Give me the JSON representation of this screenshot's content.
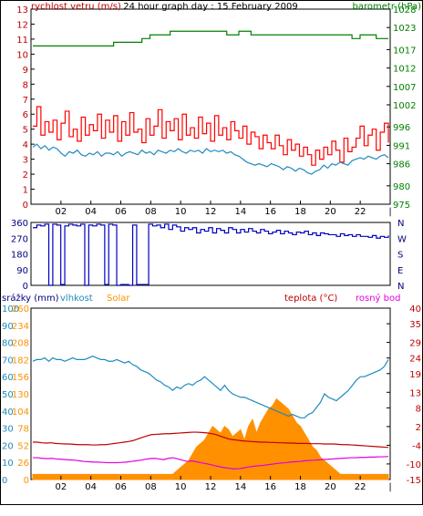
{
  "chart_data": [
    {
      "type": "line",
      "title": "24 hour graph day : 15 February 2009",
      "x_ticks": [
        "02",
        "04",
        "06",
        "08",
        "10",
        "12",
        "14",
        "16",
        "18",
        "20",
        "22"
      ],
      "left_axis": {
        "label": "rychlost vetru (m/s)",
        "color": "#c00000",
        "ylim": [
          0,
          13
        ],
        "ticks": [
          "0",
          "1",
          "2",
          "3",
          "4",
          "5",
          "6",
          "7",
          "8",
          "9",
          "10",
          "11",
          "12",
          "13"
        ]
      },
      "right_axis": {
        "label": "barometr (hPa)",
        "color": "#008000",
        "ylim": [
          975,
          1028
        ],
        "ticks": [
          "975",
          "980",
          "986",
          "991",
          "996",
          "1002",
          "1007",
          "1012",
          "1017",
          "1023",
          "1028"
        ]
      },
      "series": [
        {
          "name": "rychlost vetru",
          "axis": "left",
          "color": "#ff0000",
          "values": [
            5.2,
            6.5,
            4.6,
            5.5,
            4.8,
            5.6,
            4.3,
            5.4,
            6.2,
            4.5,
            5.0,
            4.2,
            5.8,
            4.6,
            5.3,
            4.9,
            6.0,
            4.4,
            5.6,
            4.8,
            5.9,
            4.2,
            5.5,
            4.6,
            6.1,
            4.8,
            5.0,
            4.1,
            5.7,
            4.6,
            5.2,
            6.3,
            4.4,
            5.5,
            4.9,
            5.7,
            4.3,
            6.0,
            4.6,
            5.1,
            4.4,
            5.8,
            4.7,
            5.4,
            4.2,
            5.9,
            4.6,
            5.1,
            4.3,
            5.5,
            4.9,
            4.4,
            5.2,
            4.0,
            4.8,
            4.5,
            3.7,
            4.6,
            4.1,
            3.7,
            4.6,
            3.9,
            3.3,
            4.3,
            3.6,
            4.0,
            3.2,
            3.8,
            3.3,
            2.6,
            3.6,
            3.0,
            3.8,
            3.3,
            4.2,
            3.6,
            2.8,
            4.4,
            3.5,
            3.8,
            4.4,
            5.2,
            3.9,
            4.6,
            5.0,
            3.6,
            4.8,
            5.4,
            4.1
          ]
        },
        {
          "name": "rychlost vetru prumer",
          "axis": "left",
          "color": "#1f8ac0",
          "values": [
            3.8,
            4.0,
            3.7,
            3.9,
            3.6,
            3.8,
            3.7,
            3.4,
            3.2,
            3.5,
            3.4,
            3.6,
            3.3,
            3.2,
            3.4,
            3.3,
            3.5,
            3.2,
            3.4,
            3.4,
            3.3,
            3.5,
            3.2,
            3.4,
            3.5,
            3.4,
            3.3,
            3.6,
            3.4,
            3.5,
            3.3,
            3.6,
            3.5,
            3.4,
            3.6,
            3.5,
            3.7,
            3.5,
            3.4,
            3.6,
            3.5,
            3.6,
            3.4,
            3.7,
            3.5,
            3.6,
            3.5,
            3.6,
            3.4,
            3.5,
            3.3,
            3.2,
            3.0,
            2.8,
            2.7,
            2.6,
            2.7,
            2.6,
            2.5,
            2.7,
            2.6,
            2.5,
            2.3,
            2.5,
            2.4,
            2.2,
            2.4,
            2.3,
            2.1,
            2.0,
            2.2,
            2.3,
            2.6,
            2.4,
            2.7,
            2.6,
            2.8,
            2.7,
            2.6,
            2.9,
            3.0,
            3.1,
            3.0,
            3.2,
            3.1,
            3.0,
            3.2,
            3.3,
            3.1
          ]
        },
        {
          "name": "barometr",
          "axis": "right",
          "color": "#008000",
          "values": [
            1018,
            1018,
            1018,
            1018,
            1018,
            1018,
            1018,
            1018,
            1018,
            1018,
            1018,
            1018,
            1018,
            1018,
            1018,
            1018,
            1018,
            1018,
            1018,
            1018,
            1019,
            1019,
            1019,
            1019,
            1019,
            1019,
            1019,
            1020,
            1020,
            1021,
            1021,
            1021,
            1021,
            1021,
            1022,
            1022,
            1022,
            1022,
            1022,
            1022,
            1022,
            1022,
            1022,
            1022,
            1022,
            1022,
            1022,
            1022,
            1021,
            1021,
            1021,
            1022,
            1022,
            1022,
            1021,
            1021,
            1021,
            1021,
            1021,
            1021,
            1021,
            1021,
            1021,
            1021,
            1021,
            1021,
            1021,
            1021,
            1021,
            1021,
            1021,
            1021,
            1021,
            1021,
            1021,
            1021,
            1021,
            1021,
            1021,
            1020,
            1020,
            1021,
            1021,
            1021,
            1021,
            1020,
            1020,
            1020,
            1020
          ]
        }
      ]
    },
    {
      "type": "line",
      "y_ticks": [
        "360",
        "270",
        "180",
        "90",
        "0"
      ],
      "y_ticks_right": [
        "N",
        "W",
        "S",
        "E",
        "N"
      ],
      "ylim": [
        0,
        360
      ],
      "series": [
        {
          "name": "smer vetru",
          "color": "#0000c0",
          "values": [
            330,
            345,
            340,
            350,
            0,
            350,
            345,
            5,
            340,
            350,
            345,
            340,
            350,
            0,
            345,
            340,
            350,
            345,
            5,
            350,
            345,
            0,
            5,
            5,
            0,
            345,
            5,
            5,
            5,
            350,
            340,
            345,
            330,
            350,
            320,
            345,
            335,
            310,
            330,
            320,
            330,
            300,
            320,
            310,
            330,
            300,
            325,
            315,
            300,
            330,
            320,
            300,
            320,
            305,
            325,
            310,
            300,
            320,
            310,
            295,
            305,
            315,
            295,
            310,
            300,
            290,
            305,
            300,
            310,
            290,
            300,
            285,
            300,
            295,
            290,
            290,
            280,
            295,
            285,
            290,
            280,
            290,
            280,
            280,
            275,
            285,
            270,
            280,
            275,
            285
          ]
        }
      ]
    },
    {
      "type": "line",
      "x_ticks": [
        "02",
        "04",
        "06",
        "08",
        "10",
        "12",
        "14",
        "16",
        "18",
        "20",
        "22"
      ],
      "legend": [
        {
          "label": "srážky (mm)",
          "color": "#000080"
        },
        {
          "label": "vlhkost",
          "color": "#1f8ac0"
        },
        {
          "label": "Solar",
          "color": "#ff9000"
        },
        {
          "label": "teplota (°C)",
          "color": "#c00000"
        },
        {
          "label": "rosný bod",
          "color": "#e000e0"
        }
      ],
      "left_axis_outer": {
        "label": "srážky (mm)",
        "color": "#000080",
        "ticks": [
          "0",
          "5",
          "10",
          "15",
          "20",
          "25",
          "30"
        ]
      },
      "left_axis_vlhkost": {
        "color": "#1f8ac0",
        "ylim": [
          0,
          100
        ],
        "ticks": [
          "0",
          "10",
          "20",
          "30",
          "40",
          "50",
          "60",
          "70",
          "80",
          "90",
          "100"
        ]
      },
      "left_axis_solar": {
        "color": "#ff9000",
        "ticks": [
          "0",
          "26",
          "52",
          "78",
          "104",
          "130",
          "156",
          "182",
          "208",
          "234",
          "260"
        ]
      },
      "right_axis": {
        "color": "#c00000",
        "ylim": [
          -15,
          40
        ],
        "ticks": [
          "-15",
          "-10",
          "-4",
          "2",
          "8",
          "13",
          "19",
          "24",
          "29",
          "35",
          "40"
        ]
      },
      "series": [
        {
          "name": "vlhkost",
          "axis": "vlhkost",
          "color": "#1f8ac0",
          "values": [
            69,
            70,
            70,
            71,
            69,
            71,
            70,
            70,
            69,
            70,
            71,
            70,
            70,
            70,
            71,
            72,
            71,
            70,
            70,
            69,
            69,
            70,
            69,
            68,
            69,
            67,
            66,
            64,
            63,
            62,
            60,
            58,
            57,
            55,
            54,
            52,
            54,
            53,
            55,
            56,
            55,
            57,
            58,
            60,
            58,
            56,
            54,
            52,
            55,
            52,
            50,
            49,
            48,
            48,
            47,
            46,
            45,
            44,
            43,
            42,
            41,
            40,
            39,
            38,
            37,
            38,
            37,
            36,
            36,
            38,
            39,
            42,
            45,
            50,
            48,
            47,
            46,
            48,
            50,
            52,
            55,
            58,
            60,
            60,
            61,
            62,
            63,
            64,
            66,
            70
          ]
        },
        {
          "name": "Solar",
          "axis": "vlhkost",
          "color": "#ff9000",
          "type": "area",
          "values": [
            3,
            3,
            3,
            3,
            3,
            3,
            3,
            3,
            3,
            3,
            3,
            3,
            3,
            3,
            3,
            3,
            3,
            3,
            3,
            3,
            3,
            3,
            3,
            3,
            3,
            3,
            3,
            3,
            3,
            3,
            3,
            3,
            3,
            3,
            3,
            3,
            3,
            3,
            3,
            3,
            3,
            3,
            3,
            3,
            3,
            3,
            3,
            3,
            3,
            3,
            3,
            3,
            3,
            3,
            3,
            3,
            3,
            3,
            3,
            3,
            3,
            3,
            3,
            3,
            3,
            3,
            3,
            3,
            3,
            3,
            3,
            3,
            3,
            3,
            3,
            3,
            3,
            3,
            3,
            3,
            3,
            3,
            3,
            3,
            3,
            3,
            3,
            3,
            3,
            3
          ]
        },
        {
          "name": "teplota",
          "axis": "right",
          "color": "#c00000",
          "values": [
            -3,
            -3,
            -3.2,
            -3.3,
            -3.2,
            -3.4,
            -3.5,
            -3.6,
            -3.6,
            -3.7,
            -3.8,
            -3.8,
            -3.8,
            -3.9,
            -3.9,
            -3.8,
            -3.8,
            -3.6,
            -3.4,
            -3.2,
            -3.0,
            -2.8,
            -2.5,
            -2.0,
            -1.5,
            -1.0,
            -0.6,
            -0.5,
            -0.4,
            -0.3,
            -0.3,
            -0.2,
            -0.1,
            0.0,
            0.1,
            0.2,
            0.2,
            0.1,
            0.0,
            -0.2,
            -0.5,
            -1.0,
            -1.5,
            -2.0,
            -2.2,
            -2.4,
            -2.6,
            -2.7,
            -2.8,
            -2.9,
            -3.0,
            -3.0,
            -3.1,
            -3.1,
            -3.2,
            -3.2,
            -3.3,
            -3.3,
            -3.4,
            -3.4,
            -3.4,
            -3.5,
            -3.5,
            -3.5,
            -3.6,
            -3.6,
            -3.6,
            -3.7,
            -3.8,
            -3.8,
            -3.9,
            -4.0,
            -4.1,
            -4.2,
            -4.3,
            -4.4,
            -4.5,
            -4.6,
            -4.7
          ]
        },
        {
          "name": "rosný bod",
          "axis": "right",
          "color": "#e000e0",
          "values": [
            -8,
            -8,
            -8.2,
            -8.3,
            -8.2,
            -8.4,
            -8.5,
            -8.6,
            -8.7,
            -8.8,
            -9.0,
            -9.2,
            -9.3,
            -9.4,
            -9.4,
            -9.5,
            -9.6,
            -9.6,
            -9.6,
            -9.5,
            -9.4,
            -9.2,
            -9.0,
            -8.8,
            -8.5,
            -8.3,
            -8.2,
            -8.4,
            -8.6,
            -8.2,
            -8.0,
            -8.4,
            -8.8,
            -9.2,
            -9.0,
            -9.3,
            -9.6,
            -9.9,
            -10.2,
            -10.6,
            -10.9,
            -11.2,
            -11.4,
            -11.6,
            -11.5,
            -11.3,
            -11.0,
            -10.8,
            -10.6,
            -10.5,
            -10.3,
            -10.1,
            -9.9,
            -9.7,
            -9.6,
            -9.4,
            -9.3,
            -9.2,
            -9.0,
            -8.9,
            -8.8,
            -8.7,
            -8.6,
            -8.5,
            -8.4,
            -8.3,
            -8.2,
            -8.1,
            -8.0,
            -8.0,
            -7.9,
            -7.9,
            -7.8,
            -7.8,
            -7.7,
            -7.7,
            -7.6
          ]
        }
      ],
      "solar_area": [
        0,
        0,
        0,
        0,
        0,
        0,
        0,
        0,
        0,
        0,
        0,
        0,
        0,
        0,
        0,
        0,
        0,
        0,
        0,
        0,
        0,
        0,
        0,
        0,
        0,
        0,
        0,
        0,
        0,
        0,
        0,
        0,
        0,
        0,
        0,
        0,
        1,
        2,
        3,
        4,
        6,
        8,
        9,
        10,
        12,
        14,
        13,
        12,
        14,
        13,
        11,
        12,
        13,
        10,
        14,
        16,
        12,
        15,
        17,
        19,
        20,
        22,
        21,
        20,
        19,
        17,
        15,
        14,
        12,
        10,
        8,
        7,
        5,
        4,
        3,
        2,
        1,
        0,
        0,
        0,
        0,
        0,
        0,
        0,
        0,
        0,
        0,
        0,
        0,
        0
      ]
    }
  ]
}
